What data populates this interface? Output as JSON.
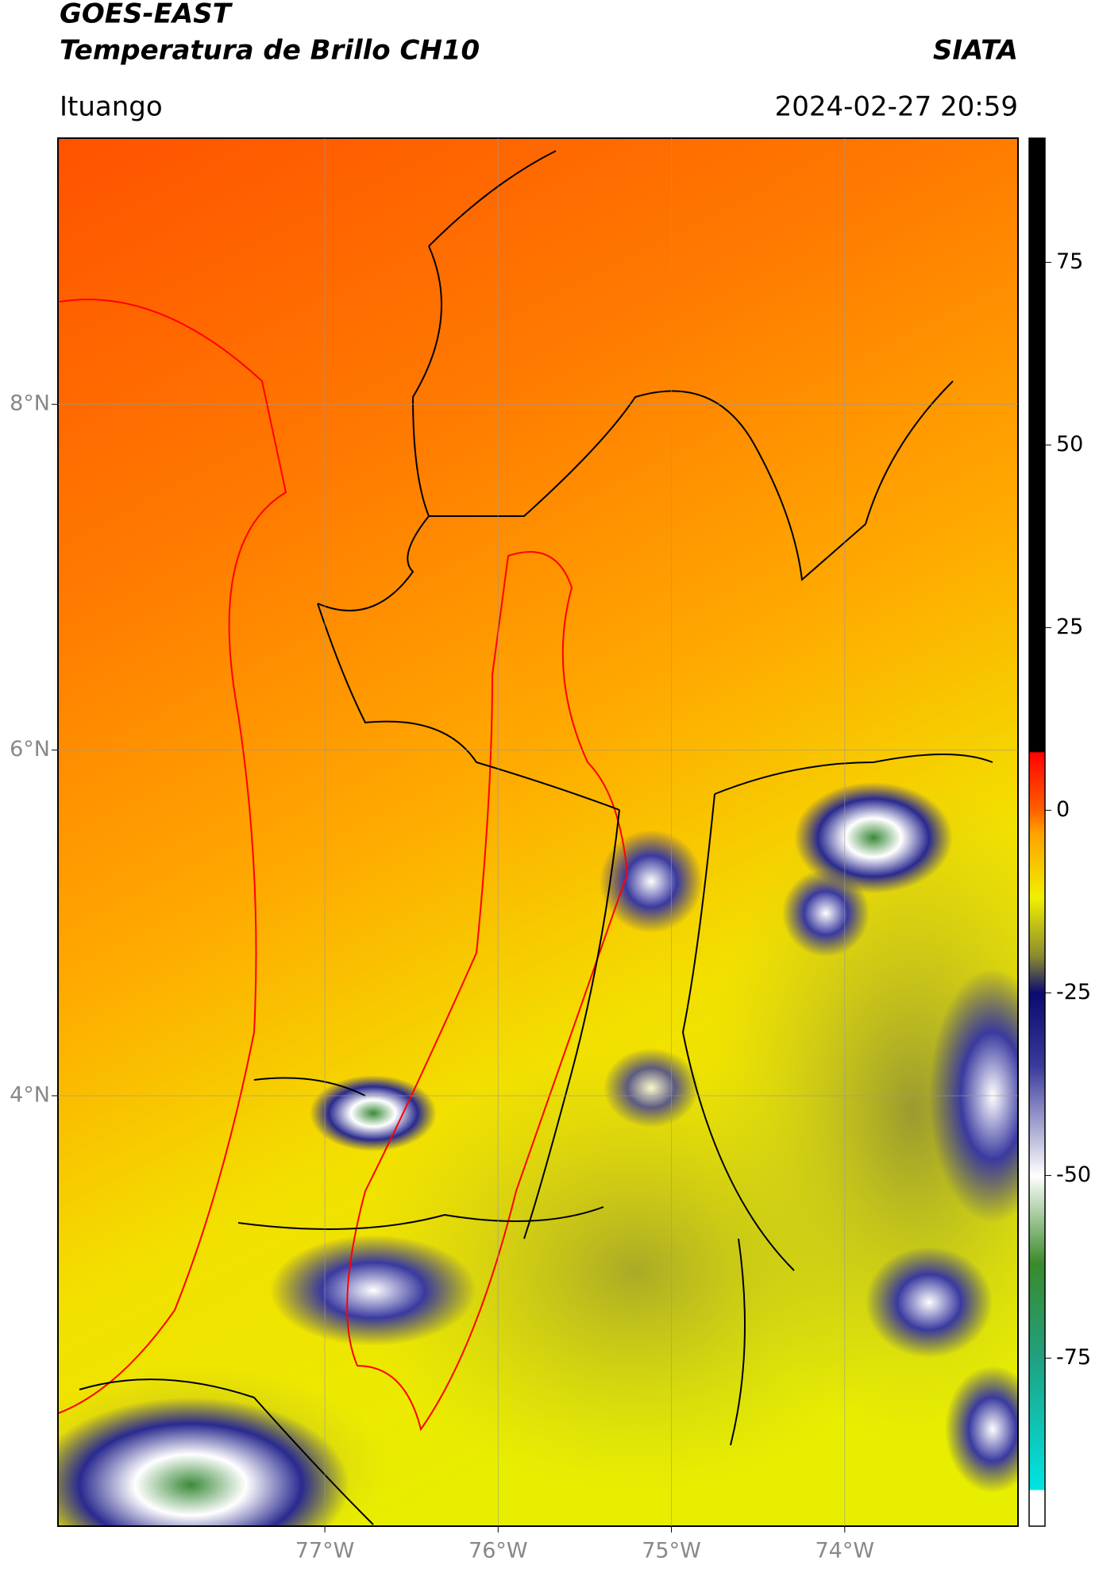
{
  "header": {
    "title": "GOES-EAST",
    "subtitle": "Temperatura de Brillo CH10",
    "source": "SIATA",
    "place": "Ituango",
    "datetime": "2024-02-27 20:59"
  },
  "map": {
    "xlim": [
      -78.54,
      -73.0
    ],
    "ylim": [
      1.51,
      9.54
    ],
    "xticks": [
      {
        "value": -77,
        "label": "77°W"
      },
      {
        "value": -76,
        "label": "76°W"
      },
      {
        "value": -75,
        "label": "75°W"
      },
      {
        "value": -74,
        "label": "74°W"
      }
    ],
    "yticks": [
      {
        "value": 8,
        "label": "8°N"
      },
      {
        "value": 6,
        "label": "6°N"
      },
      {
        "value": 4,
        "label": "4°N"
      }
    ],
    "grid": true
  },
  "colorbar": {
    "ylim": [
      -98,
      92
    ],
    "yticks": [
      75,
      50,
      25,
      0,
      -25,
      -50,
      -75
    ],
    "stops": [
      {
        "value": -98,
        "color": "#ffffff"
      },
      {
        "value": -93,
        "color": "#ffffff"
      },
      {
        "value": -93,
        "color": "#00e5e5"
      },
      {
        "value": -75,
        "color": "#20a080"
      },
      {
        "value": -62,
        "color": "#3a8a2a"
      },
      {
        "value": -50,
        "color": "#ffffff"
      },
      {
        "value": -35,
        "color": "#3a3a9a"
      },
      {
        "value": -25,
        "color": "#0a0a70"
      },
      {
        "value": -20,
        "color": "#8a8a30"
      },
      {
        "value": -12,
        "color": "#f0f000"
      },
      {
        "value": -3,
        "color": "#ffa000"
      },
      {
        "value": 0,
        "color": "#ff6000"
      },
      {
        "value": 8,
        "color": "#ff0000"
      },
      {
        "value": 8,
        "color": "#000000"
      },
      {
        "value": 92,
        "color": "#000000"
      }
    ]
  }
}
